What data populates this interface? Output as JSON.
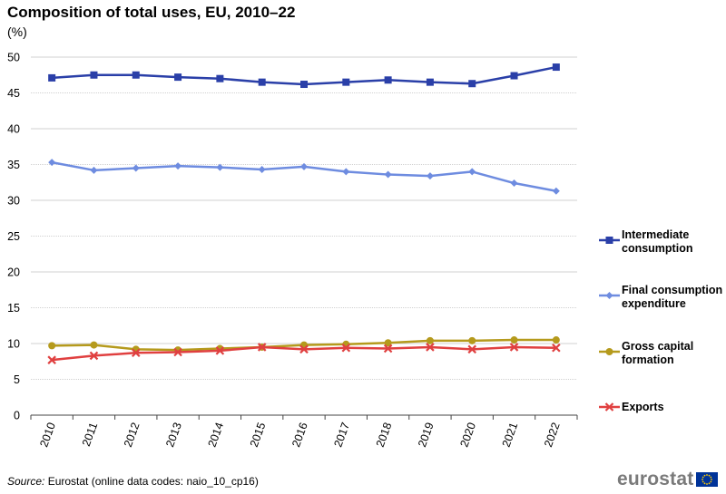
{
  "title": "Composition of total uses, EU, 2010–22",
  "unit": "(%)",
  "source": {
    "label": "Source:",
    "text": " Eurostat (online data codes: naio_10_cp16)"
  },
  "brand": {
    "name": "eurostat",
    "flag_color": "#003399",
    "star_color": "#ffcc00"
  },
  "chart_data": {
    "type": "line",
    "title": "Composition of total uses, EU, 2010–22",
    "xlabel": "",
    "ylabel": "(%)",
    "ylim": [
      0,
      50
    ],
    "yticks": [
      0,
      5,
      10,
      15,
      20,
      25,
      30,
      35,
      40,
      45,
      50
    ],
    "grid": true,
    "legend_position": "right",
    "categories": [
      "2010",
      "2011",
      "2012",
      "2013",
      "2014",
      "2015",
      "2016",
      "2017",
      "2018",
      "2019",
      "2020",
      "2021",
      "2022"
    ],
    "series": [
      {
        "name_lines": [
          "Intermediate",
          "consumption"
        ],
        "color": "#2a3fa8",
        "marker": "square",
        "values": [
          47.1,
          47.5,
          47.5,
          47.2,
          47.0,
          46.5,
          46.2,
          46.5,
          46.8,
          46.5,
          46.3,
          47.4,
          48.6
        ]
      },
      {
        "name_lines": [
          "Final consumption",
          "expenditure"
        ],
        "color": "#6e8ce0",
        "marker": "diamond",
        "values": [
          35.3,
          34.2,
          34.5,
          34.8,
          34.6,
          34.3,
          34.7,
          34.0,
          33.6,
          33.4,
          34.0,
          32.4,
          31.3
        ]
      },
      {
        "name_lines": [
          "Gross capital",
          "formation"
        ],
        "color": "#b59a1c",
        "marker": "circle",
        "values": [
          9.7,
          9.8,
          9.2,
          9.1,
          9.3,
          9.5,
          9.8,
          9.9,
          10.1,
          10.4,
          10.4,
          10.5,
          10.5
        ]
      },
      {
        "name_lines": [
          "Exports"
        ],
        "color": "#e04040",
        "marker": "x",
        "values": [
          7.7,
          8.3,
          8.7,
          8.8,
          9.0,
          9.5,
          9.2,
          9.4,
          9.3,
          9.5,
          9.2,
          9.5,
          9.4
        ]
      }
    ]
  }
}
